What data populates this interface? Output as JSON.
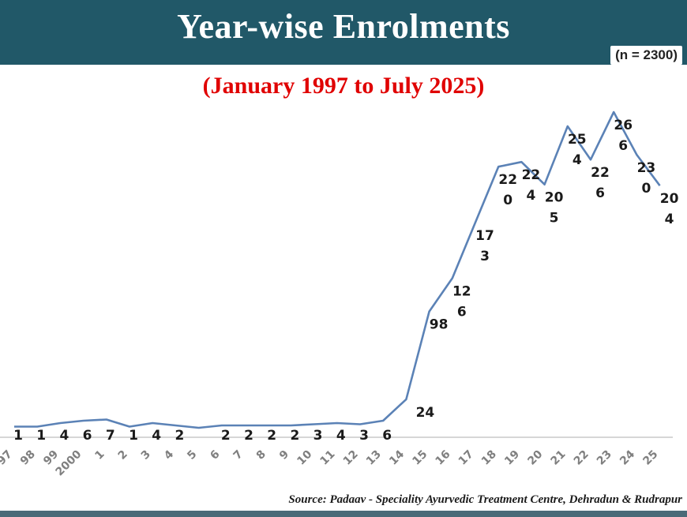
{
  "header": {
    "title": "Year-wise Enrolments",
    "sample_size": "(n = 2300)",
    "background_color": "#215868"
  },
  "subtitle": "(January 1997 to July 2025)",
  "source": "Source: Padaav - Speciality Ayurvedic Treatment Centre, Dehradun & Rudrapur",
  "chart_data": {
    "type": "line",
    "title": "Year-wise Enrolments",
    "subtitle": "(January 1997 to July 2025)",
    "xlabel": "",
    "ylabel": "",
    "ylim": [
      0,
      300
    ],
    "grid": false,
    "legend": "none",
    "line_color": "#5b82b6",
    "categories": [
      "97",
      "98",
      "99",
      "2000",
      "1",
      "2",
      "3",
      "4",
      "5",
      "6",
      "7",
      "8",
      "9",
      "10",
      "11",
      "12",
      "13",
      "14",
      "15",
      "16",
      "17",
      "18",
      "19",
      "20",
      "21",
      "22",
      "23",
      "24",
      "25"
    ],
    "values": [
      1,
      1,
      4,
      6,
      7,
      1,
      4,
      2,
      0,
      2,
      2,
      2,
      2,
      3,
      4,
      3,
      6,
      24,
      98,
      126,
      173,
      220,
      224,
      205,
      254,
      226,
      266,
      230,
      204
    ],
    "data_labels": [
      "1",
      "1",
      "4",
      "6",
      "7",
      "1",
      "4",
      "2",
      "",
      "2",
      "2",
      "2",
      "2",
      "3",
      "4",
      "3",
      "6",
      "24",
      "98",
      "12\n6",
      "17\n3",
      "22\n0",
      "22\n4",
      "20\n5",
      "25\n4",
      "22\n6",
      "26\n6",
      "23\n0",
      "20\n4"
    ]
  }
}
